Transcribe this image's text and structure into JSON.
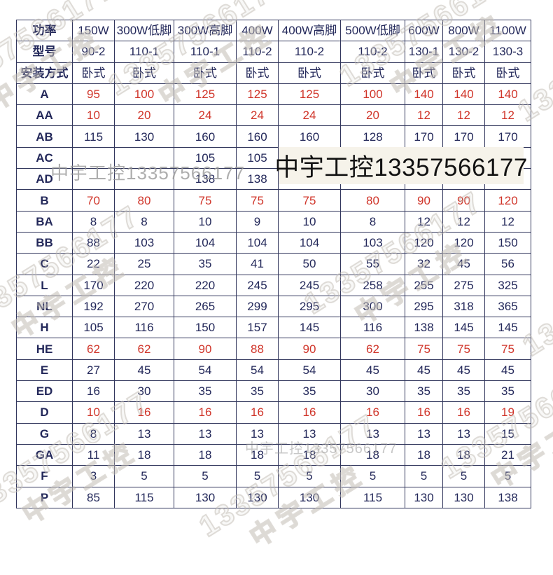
{
  "watermarks": {
    "box_text": "中宇工控13357566177",
    "gray_text": "中宇工控13357566177",
    "diag_line1": "13357566177",
    "diag_line2": "中宇工控",
    "box_bg": "#f6f3ea"
  },
  "colors": {
    "label_red": "#c92220",
    "value_red": "#d0352a",
    "value_dark": "#23285a",
    "border": "#31365c"
  },
  "table": {
    "rows": [
      {
        "label": "功率",
        "red": false,
        "values": [
          "150W",
          "300W低脚",
          "300W高脚",
          "400W",
          "400W高脚",
          "500W低脚",
          "600W",
          "800W",
          "1100W"
        ]
      },
      {
        "label": "型号",
        "red": false,
        "values": [
          "90-2",
          "110-1",
          "110-1",
          "110-2",
          "110-2",
          "110-2",
          "130-1",
          "130-2",
          "130-3"
        ]
      },
      {
        "label": "安装方式",
        "red": false,
        "values": [
          "卧式",
          "卧式",
          "卧式",
          "卧式",
          "卧式",
          "卧式",
          "卧式",
          "卧式",
          "卧式"
        ]
      },
      {
        "label": "A",
        "red": true,
        "values": [
          "95",
          "100",
          "125",
          "125",
          "125",
          "100",
          "140",
          "140",
          "140"
        ]
      },
      {
        "label": "AA",
        "red": true,
        "values": [
          "10",
          "20",
          "24",
          "24",
          "24",
          "20",
          "12",
          "12",
          "12"
        ]
      },
      {
        "label": "AB",
        "red": false,
        "values": [
          "115",
          "130",
          "160",
          "160",
          "160",
          "128",
          "170",
          "170",
          "170"
        ]
      },
      {
        "label": "AC",
        "red": false,
        "values": [
          "",
          "",
          "105",
          "105",
          "",
          "",
          "",
          "",
          ""
        ]
      },
      {
        "label": "AD",
        "red": false,
        "values": [
          "",
          "",
          "138",
          "138",
          "",
          "",
          "",
          "",
          ""
        ]
      },
      {
        "label": "B",
        "red": true,
        "values": [
          "70",
          "80",
          "75",
          "75",
          "75",
          "80",
          "90",
          "90",
          "120"
        ]
      },
      {
        "label": "BA",
        "red": false,
        "values": [
          "8",
          "8",
          "10",
          "9",
          "10",
          "8",
          "12",
          "12",
          "12"
        ]
      },
      {
        "label": "BB",
        "red": false,
        "values": [
          "88",
          "103",
          "104",
          "104",
          "104",
          "103",
          "120",
          "120",
          "150"
        ]
      },
      {
        "label": "C",
        "red": false,
        "values": [
          "22",
          "25",
          "35",
          "41",
          "50",
          "55",
          "32",
          "45",
          "56"
        ]
      },
      {
        "label": "L",
        "red": false,
        "values": [
          "170",
          "220",
          "220",
          "245",
          "245",
          "258",
          "255",
          "275",
          "325"
        ]
      },
      {
        "label": "NL",
        "red": false,
        "values": [
          "192",
          "270",
          "265",
          "299",
          "295",
          "300",
          "295",
          "318",
          "365"
        ]
      },
      {
        "label": "H",
        "red": false,
        "values": [
          "105",
          "116",
          "150",
          "157",
          "145",
          "116",
          "138",
          "145",
          "145"
        ]
      },
      {
        "label": "HE",
        "red": true,
        "values": [
          "62",
          "62",
          "90",
          "88",
          "90",
          "62",
          "75",
          "75",
          "75"
        ]
      },
      {
        "label": "E",
        "red": false,
        "values": [
          "27",
          "45",
          "54",
          "54",
          "54",
          "45",
          "45",
          "45",
          "45"
        ]
      },
      {
        "label": "ED",
        "red": false,
        "values": [
          "16",
          "30",
          "35",
          "35",
          "35",
          "30",
          "35",
          "35",
          "35"
        ]
      },
      {
        "label": "D",
        "red": true,
        "values": [
          "10",
          "16",
          "16",
          "16",
          "16",
          "16",
          "16",
          "16",
          "19"
        ]
      },
      {
        "label": "G",
        "red": false,
        "values": [
          "8",
          "13",
          "13",
          "13",
          "13",
          "13",
          "13",
          "13",
          "15"
        ]
      },
      {
        "label": "GA",
        "red": false,
        "values": [
          "11",
          "18",
          "18",
          "18",
          "18",
          "18",
          "18",
          "18",
          "21"
        ]
      },
      {
        "label": "F",
        "red": false,
        "values": [
          "3",
          "5",
          "5",
          "5",
          "5",
          "5",
          "5",
          "5",
          "5"
        ]
      },
      {
        "label": "P",
        "red": false,
        "values": [
          "85",
          "115",
          "130",
          "130",
          "130",
          "115",
          "130",
          "130",
          "138"
        ]
      }
    ]
  }
}
